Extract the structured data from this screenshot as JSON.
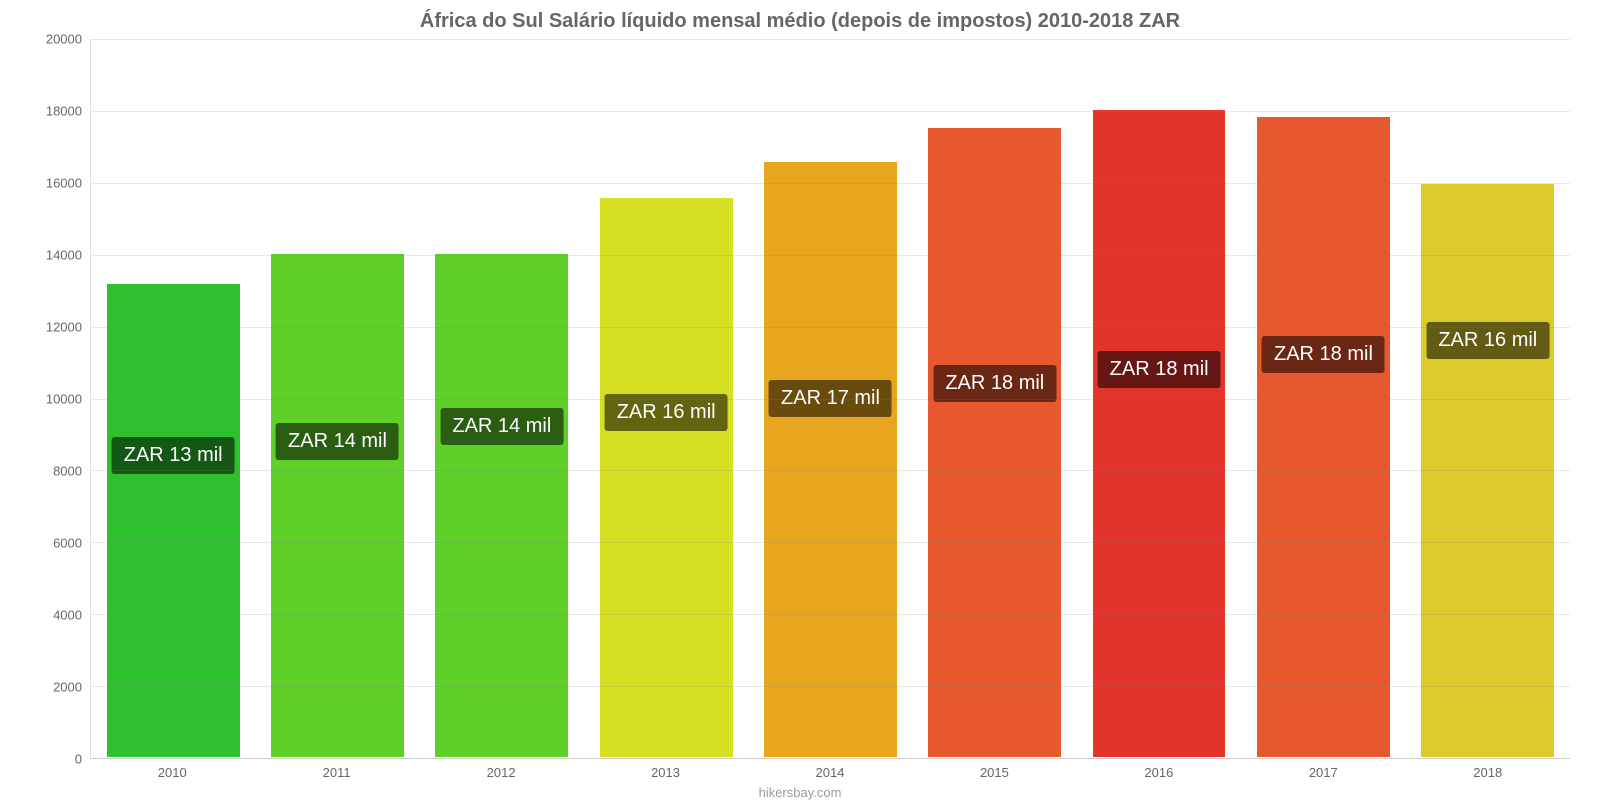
{
  "chart": {
    "type": "bar",
    "title": "África do Sul Salário líquido mensal médio (depois de impostos) 2010-2018 ZAR",
    "title_fontsize": 20,
    "title_color": "#666666",
    "attribution": "hikersbay.com",
    "attribution_color": "#9a9a9a",
    "background_color": "#ffffff",
    "grid_color": "rgba(128,128,128,0.18)",
    "axis_label_color": "#666666",
    "axis_font_size": 13,
    "ylim": [
      0,
      20000
    ],
    "ytick_step": 2000,
    "yticks": [
      0,
      2000,
      4000,
      6000,
      8000,
      10000,
      12000,
      14000,
      16000,
      18000,
      20000
    ],
    "categories": [
      "2010",
      "2011",
      "2012",
      "2013",
      "2014",
      "2015",
      "2016",
      "2017",
      "2018"
    ],
    "values": [
      13200,
      14050,
      14050,
      15600,
      16600,
      17550,
      18050,
      17850,
      16000
    ],
    "value_labels": [
      "ZAR 13 mil",
      "ZAR 14 mil",
      "ZAR 14 mil",
      "ZAR 16 mil",
      "ZAR 17 mil",
      "ZAR 18 mil",
      "ZAR 18 mil",
      "ZAR 18 mil",
      "ZAR 16 mil"
    ],
    "bar_colors": [
      "#2fc02f",
      "#5fcf2a",
      "#5fcf2a",
      "#d7df23",
      "#e8a61e",
      "#e8582e",
      "#e3342b",
      "#e8582e",
      "#dcc92a"
    ],
    "bar_width_pct": 82,
    "badge_bg": "rgba(0,0,0,0.55)",
    "badge_text_color": "#ffffff",
    "badge_font_size": 20,
    "badge_center_value": 8400,
    "badge_step_per_bar": 400
  }
}
